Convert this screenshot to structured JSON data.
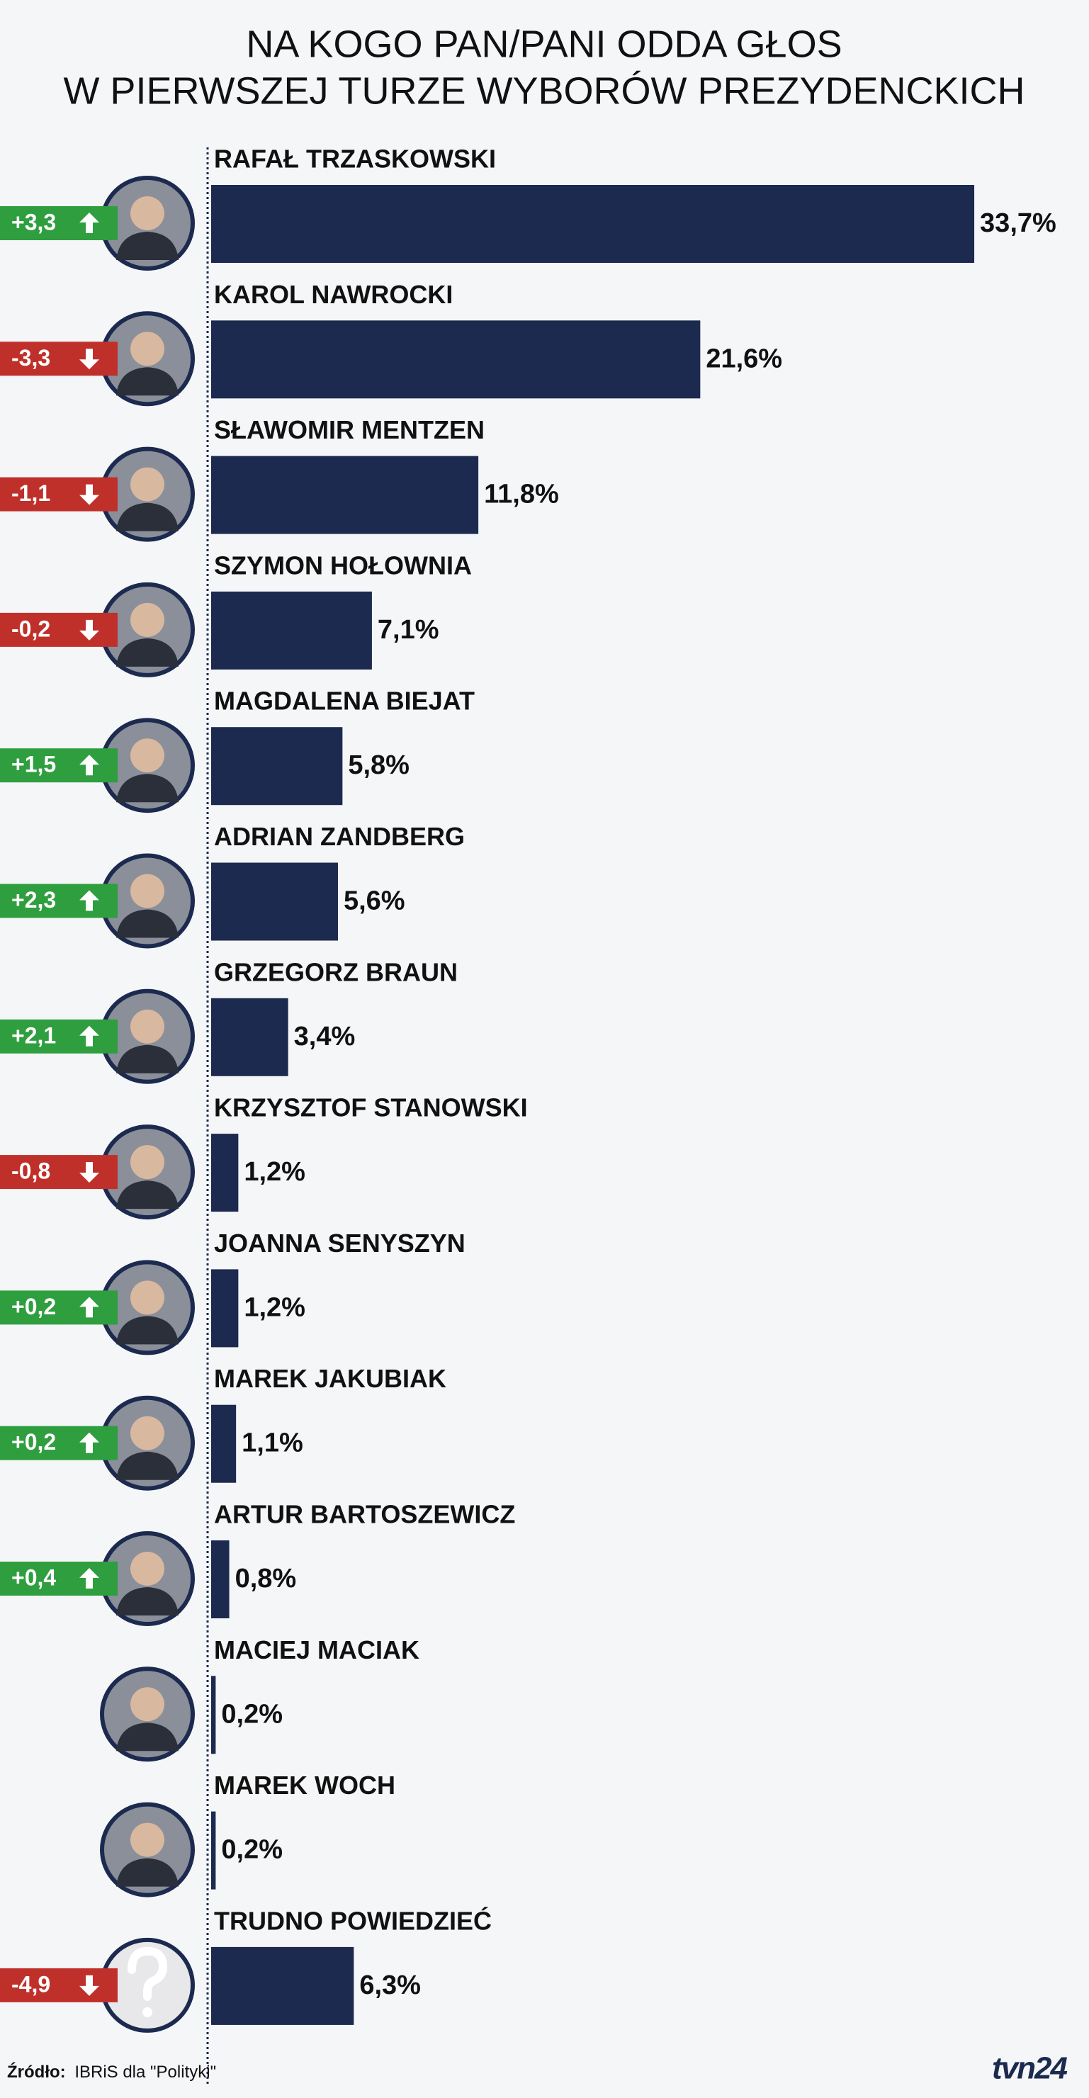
{
  "chart_data": {
    "type": "bar",
    "orientation": "horizontal",
    "title": [
      "NA KOGO PAN/PANI ODDA GŁOS",
      "W PIERWSZEJ TURZE WYBORÓW PREZYDENCKICH"
    ],
    "categories": [
      "RAFAŁ TRZASKOWSKI",
      "KAROL NAWROCKI",
      "SŁAWOMIR MENTZEN",
      "SZYMON HOŁOWNIA",
      "MAGDALENA BIEJAT",
      "ADRIAN ZANDBERG",
      "GRZEGORZ BRAUN",
      "KRZYSZTOF STANOWSKI",
      "JOANNA SENYSZYN",
      "MAREK JAKUBIAK",
      "ARTUR BARTOSZEWICZ",
      "MACIEJ MACIAK",
      "MAREK WOCH",
      "TRUDNO POWIEDZIEĆ"
    ],
    "values": [
      33.7,
      21.6,
      11.8,
      7.1,
      5.8,
      5.6,
      3.4,
      1.2,
      1.2,
      1.1,
      0.8,
      0.2,
      0.2,
      6.3
    ],
    "value_labels": [
      "33,7%",
      "21,6%",
      "11,8%",
      "7,1%",
      "5,8%",
      "5,6%",
      "3,4%",
      "1,2%",
      "1,2%",
      "1,1%",
      "0,8%",
      "0,2%",
      "0,2%",
      "6,3%"
    ],
    "color": "#1b2a4e",
    "changes": [
      3.3,
      -3.3,
      -1.1,
      -0.2,
      1.5,
      2.3,
      2.1,
      -0.8,
      0.2,
      0.2,
      0.4,
      null,
      null,
      -4.9
    ],
    "change_labels": [
      "+3,3",
      "-3,3",
      "-1,1",
      "-0,2",
      "+1,5",
      "+2,3",
      "+2,1",
      "-0,8",
      "+0,2",
      "+0,2",
      "+0,4",
      null,
      null,
      "-4,9"
    ],
    "increase_color": "#2e9e3f",
    "decrease_color": "#c0302b",
    "source_label": "Źródło:",
    "source": "IBRiS dla \"Polityki\"",
    "logo": "tvn24"
  }
}
